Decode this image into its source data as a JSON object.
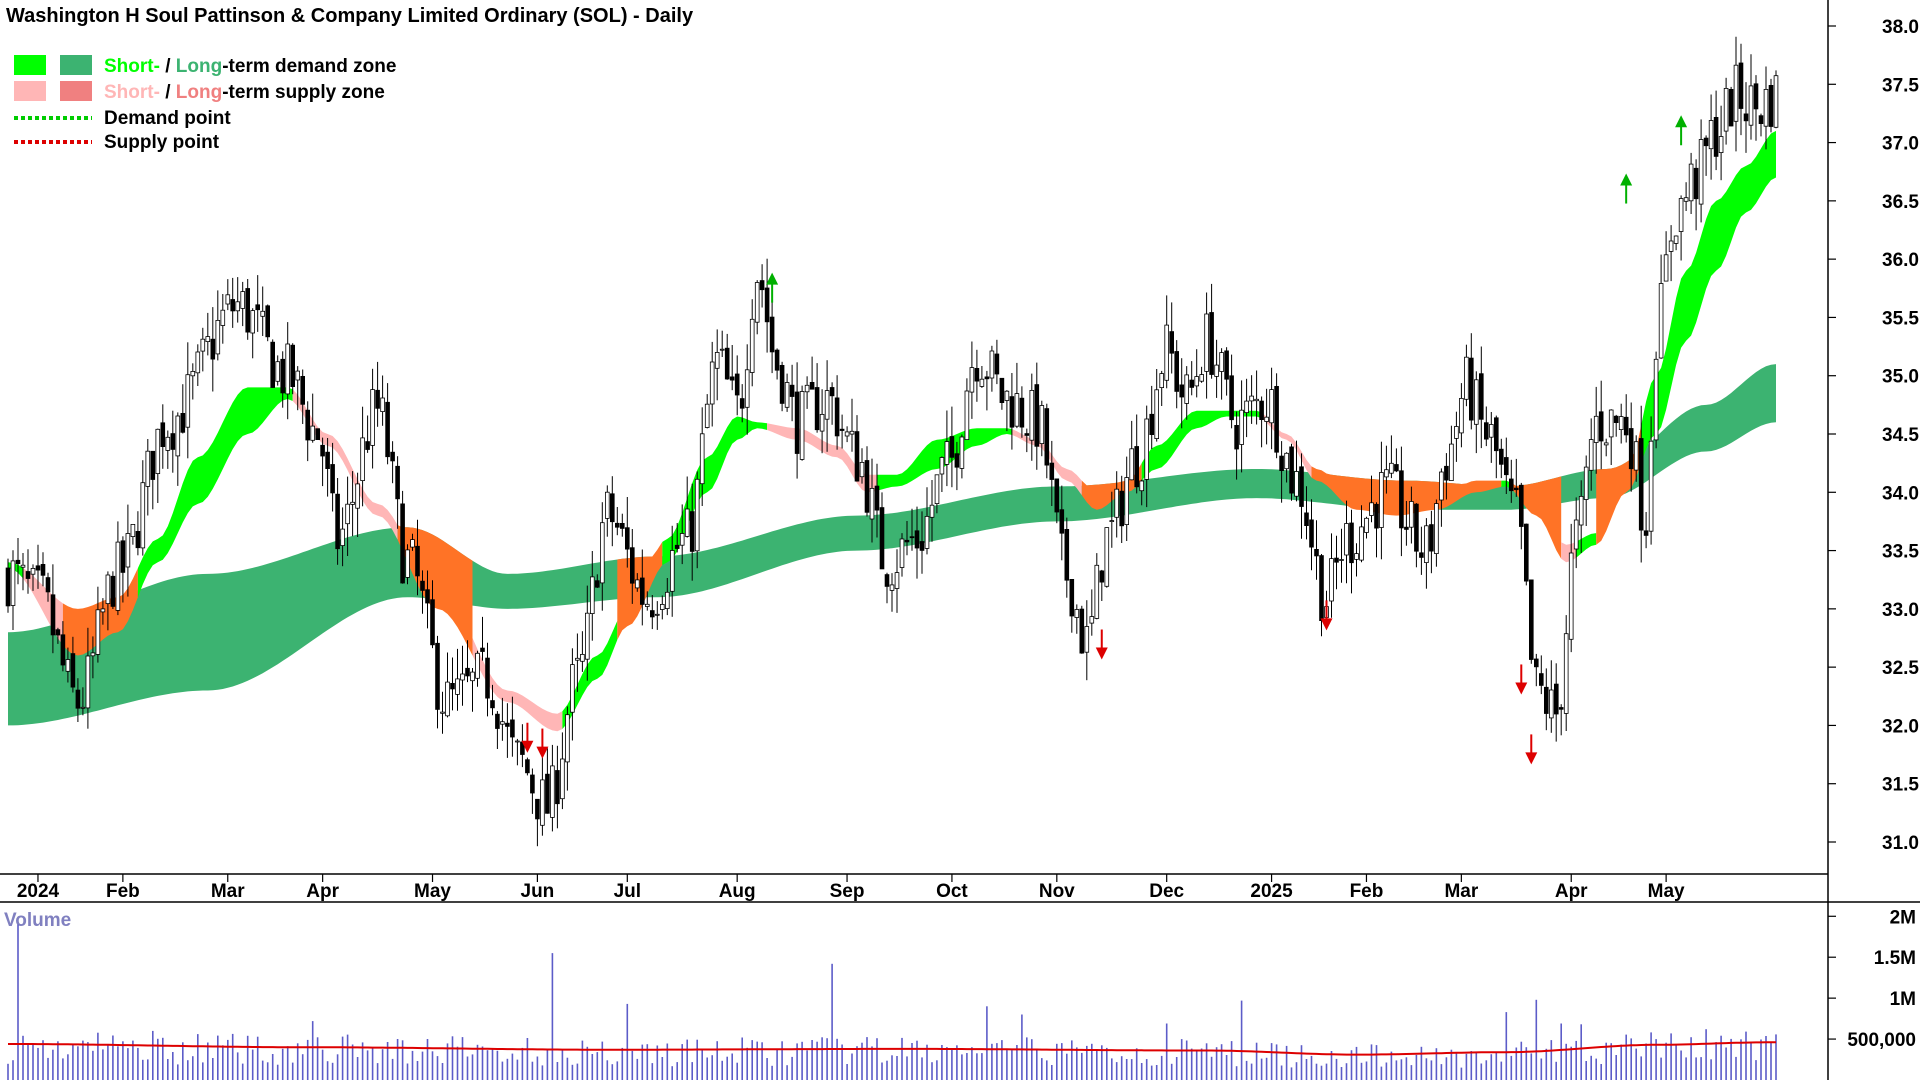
{
  "chart_data": {
    "type": "candlestick",
    "title": "Washington H Soul Pattinson & Company Limited Ordinary (SOL) - Daily",
    "legend": {
      "placement": "top-left",
      "entries": [
        {
          "parts": [
            {
              "text": "Short-",
              "color": "#00ff00"
            },
            {
              "text": " / ",
              "color": "#000000"
            },
            {
              "text": "Long",
              "color": "#3cb371"
            },
            {
              "text": "-term demand zone",
              "color": "#000000"
            }
          ],
          "swatches": [
            "#00ff00",
            "#3cb371"
          ]
        },
        {
          "parts": [
            {
              "text": "Short-",
              "color": "#ffb6b6"
            },
            {
              "text": " / ",
              "color": "#000000"
            },
            {
              "text": "Long",
              "color": "#f08080"
            },
            {
              "text": "-term supply zone",
              "color": "#000000"
            }
          ],
          "swatches": [
            "#ffb6b6",
            "#f08080"
          ]
        },
        {
          "parts": [
            {
              "text": "Demand point",
              "color": "#000000"
            }
          ],
          "line": "#00cc00"
        },
        {
          "parts": [
            {
              "text": "Supply point",
              "color": "#000000"
            }
          ],
          "line": "#dd0000"
        }
      ]
    },
    "x_axis": {
      "labels": [
        "2024",
        "Feb",
        "Mar",
        "Apr",
        "May",
        "Jun",
        "Jul",
        "Aug",
        "Sep",
        "Oct",
        "Nov",
        "Dec",
        "2025",
        "Feb",
        "Mar",
        "Apr",
        "May"
      ],
      "label_day_index": [
        6,
        23,
        44,
        63,
        85,
        106,
        124,
        146,
        168,
        189,
        210,
        232,
        253,
        272,
        291,
        313,
        332
      ]
    },
    "y_axis": {
      "ticks": [
        31.0,
        31.5,
        32.0,
        32.5,
        33.0,
        33.5,
        34.0,
        34.5,
        35.0,
        35.5,
        36.0,
        36.5,
        37.0,
        37.5,
        38.0
      ],
      "range": [
        30.7,
        38.2
      ],
      "position": "right"
    },
    "volume": {
      "title": "Volume",
      "ticks": [
        {
          "label": "500,000",
          "value": 500000
        },
        {
          "label": "1M",
          "value": 1000000
        },
        {
          "label": "1.5M",
          "value": 1500000
        },
        {
          "label": "2M",
          "value": 2000000
        }
      ],
      "range": [
        0,
        2150000
      ],
      "bar_color": "#5c5cc8",
      "average_color": "#dd0000",
      "average": [
        [
          0,
          440000
        ],
        [
          60,
          400000
        ],
        [
          120,
          370000
        ],
        [
          180,
          380000
        ],
        [
          240,
          360000
        ],
        [
          270,
          310000
        ],
        [
          300,
          340000
        ],
        [
          330,
          430000
        ],
        [
          352,
          460000
        ]
      ],
      "spikes": [
        [
          2,
          1900000
        ],
        [
          29,
          600000
        ],
        [
          61,
          720000
        ],
        [
          109,
          1550000
        ],
        [
          124,
          930000
        ],
        [
          165,
          1420000
        ],
        [
          196,
          900000
        ],
        [
          203,
          800000
        ],
        [
          232,
          690000
        ],
        [
          247,
          970000
        ],
        [
          300,
          830000
        ],
        [
          306,
          980000
        ],
        [
          311,
          690000
        ],
        [
          315,
          680000
        ],
        [
          340,
          620000
        ]
      ]
    },
    "days": 355,
    "anchors": [
      [
        0,
        33.3
      ],
      [
        6,
        33.1
      ],
      [
        14,
        32.2
      ],
      [
        22,
        33.3
      ],
      [
        32,
        34.6
      ],
      [
        46,
        35.6
      ],
      [
        56,
        35.0
      ],
      [
        62,
        34.5
      ],
      [
        66,
        33.6
      ],
      [
        74,
        34.7
      ],
      [
        80,
        33.4
      ],
      [
        88,
        32.2
      ],
      [
        96,
        32.4
      ],
      [
        102,
        31.7
      ],
      [
        108,
        31.3
      ],
      [
        114,
        32.4
      ],
      [
        120,
        33.8
      ],
      [
        128,
        33.1
      ],
      [
        136,
        33.6
      ],
      [
        142,
        35.1
      ],
      [
        146,
        34.7
      ],
      [
        150,
        35.9
      ],
      [
        154,
        35.1
      ],
      [
        158,
        34.6
      ],
      [
        164,
        34.8
      ],
      [
        170,
        34.3
      ],
      [
        176,
        33.4
      ],
      [
        182,
        33.6
      ],
      [
        188,
        34.2
      ],
      [
        194,
        35.2
      ],
      [
        200,
        34.8
      ],
      [
        206,
        34.6
      ],
      [
        212,
        33.3
      ],
      [
        216,
        32.7
      ],
      [
        220,
        33.6
      ],
      [
        226,
        34.3
      ],
      [
        232,
        35.2
      ],
      [
        236,
        34.8
      ],
      [
        240,
        35.3
      ],
      [
        246,
        34.6
      ],
      [
        252,
        34.8
      ],
      [
        258,
        34.1
      ],
      [
        264,
        33.1
      ],
      [
        268,
        33.6
      ],
      [
        276,
        34.0
      ],
      [
        284,
        33.5
      ],
      [
        288,
        34.3
      ],
      [
        292,
        34.9
      ],
      [
        296,
        34.5
      ],
      [
        302,
        33.8
      ],
      [
        306,
        32.3
      ],
      [
        310,
        32.1
      ],
      [
        314,
        33.6
      ],
      [
        318,
        34.6
      ],
      [
        324,
        34.6
      ],
      [
        328,
        33.8
      ],
      [
        330,
        35.4
      ],
      [
        334,
        36.4
      ],
      [
        338,
        36.7
      ],
      [
        342,
        37.1
      ],
      [
        346,
        37.4
      ],
      [
        350,
        37.3
      ],
      [
        354,
        37.4
      ]
    ],
    "candle_seed": 7,
    "zones": {
      "long_band": [
        [
          0,
          32.0,
          32.8
        ],
        [
          40,
          32.3,
          33.3
        ],
        [
          80,
          33.1,
          33.7
        ],
        [
          100,
          33.0,
          33.3
        ],
        [
          130,
          33.1,
          33.45
        ],
        [
          170,
          33.5,
          33.8
        ],
        [
          210,
          33.75,
          34.05
        ],
        [
          250,
          33.95,
          34.2
        ],
        [
          280,
          33.85,
          34.1
        ],
        [
          300,
          33.85,
          34.05
        ],
        [
          320,
          33.95,
          34.2
        ],
        [
          340,
          34.35,
          34.75
        ],
        [
          354,
          34.6,
          35.1
        ]
      ],
      "short_band": [
        [
          0,
          33.35,
          33.4
        ],
        [
          14,
          32.6,
          33.0
        ],
        [
          22,
          32.8,
          33.1
        ],
        [
          30,
          33.4,
          33.6
        ],
        [
          38,
          33.9,
          34.3
        ],
        [
          48,
          34.5,
          34.9
        ],
        [
          56,
          34.8,
          34.9
        ],
        [
          64,
          34.4,
          34.5
        ],
        [
          74,
          33.8,
          33.9
        ],
        [
          86,
          33.0,
          33.2
        ],
        [
          100,
          32.2,
          32.3
        ],
        [
          110,
          31.95,
          32.1
        ],
        [
          118,
          32.4,
          32.6
        ],
        [
          124,
          32.85,
          33.0
        ],
        [
          132,
          33.4,
          33.6
        ],
        [
          140,
          34.0,
          34.3
        ],
        [
          146,
          34.45,
          34.65
        ],
        [
          150,
          34.55,
          34.6
        ],
        [
          158,
          34.45,
          34.55
        ],
        [
          166,
          34.3,
          34.4
        ],
        [
          172,
          34.0,
          34.15
        ],
        [
          178,
          34.05,
          34.15
        ],
        [
          186,
          34.2,
          34.45
        ],
        [
          194,
          34.4,
          34.55
        ],
        [
          200,
          34.5,
          34.55
        ],
        [
          206,
          34.4,
          34.45
        ],
        [
          212,
          34.1,
          34.2
        ],
        [
          218,
          33.85,
          34.0
        ],
        [
          224,
          34.0,
          34.1
        ],
        [
          230,
          34.2,
          34.4
        ],
        [
          238,
          34.55,
          34.7
        ],
        [
          244,
          34.65,
          34.7
        ],
        [
          250,
          34.65,
          34.7
        ],
        [
          256,
          34.45,
          34.5
        ],
        [
          262,
          34.1,
          34.2
        ],
        [
          270,
          33.85,
          33.95
        ],
        [
          278,
          33.8,
          33.85
        ],
        [
          286,
          33.85,
          33.95
        ],
        [
          294,
          34.0,
          34.1
        ],
        [
          300,
          34.05,
          34.1
        ],
        [
          306,
          33.8,
          33.85
        ],
        [
          312,
          33.4,
          33.55
        ],
        [
          318,
          33.55,
          33.65
        ],
        [
          324,
          34.0,
          34.15
        ],
        [
          330,
          34.5,
          35.0
        ],
        [
          336,
          35.3,
          35.9
        ],
        [
          342,
          35.9,
          36.5
        ],
        [
          348,
          36.4,
          36.8
        ],
        [
          354,
          36.7,
          37.1
        ]
      ]
    },
    "markers": [
      {
        "day": 104,
        "type": "supply",
        "price": 31.8
      },
      {
        "day": 107,
        "type": "supply",
        "price": 31.75
      },
      {
        "day": 153,
        "type": "demand",
        "price": 35.85
      },
      {
        "day": 219,
        "type": "supply",
        "price": 32.6
      },
      {
        "day": 264,
        "type": "supply",
        "price": 32.85
      },
      {
        "day": 303,
        "type": "supply",
        "price": 32.3
      },
      {
        "day": 305,
        "type": "supply",
        "price": 31.7
      },
      {
        "day": 324,
        "type": "demand",
        "price": 36.7
      },
      {
        "day": 335,
        "type": "demand",
        "price": 37.2
      }
    ],
    "colors": {
      "long_demand": "#3cb371",
      "short_demand": "#00ff00",
      "long_supply": "#f08080",
      "short_supply": "#ffb6b6",
      "band_overlap": "#ff7326",
      "candle_up": "#ffffff",
      "candle_down": "#000000",
      "arrow_up": "#00b000",
      "arrow_down": "#dd0000"
    }
  }
}
